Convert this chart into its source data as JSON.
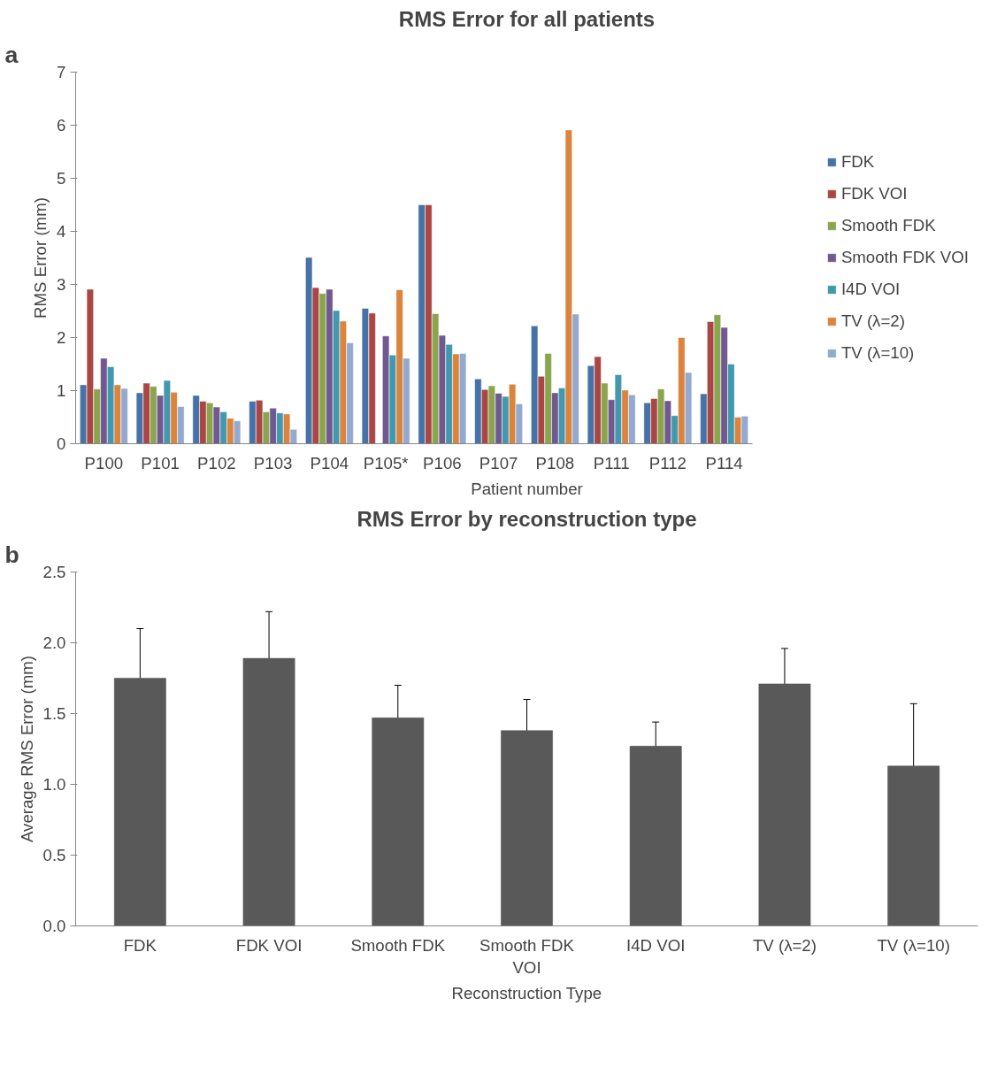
{
  "chart_data": [
    {
      "type": "bar",
      "title": "RMS Error for all patients",
      "xlabel": "Patient number",
      "ylabel": "RMS Error (mm)",
      "annotations": [
        "a"
      ],
      "categories": [
        "P100",
        "P101",
        "P102",
        "P103",
        "P104",
        "P105*",
        "P106",
        "P107",
        "P108",
        "P111",
        "P112",
        "P114"
      ],
      "ylim": [
        0,
        7
      ],
      "yticks": [
        0,
        1,
        2,
        3,
        4,
        5,
        6,
        7
      ],
      "grid": false,
      "legend": "right",
      "series": [
        {
          "name": "FDK",
          "color": "#4572a7",
          "values": [
            1.11,
            0.96,
            0.91,
            0.8,
            3.51,
            2.55,
            4.5,
            1.22,
            2.22,
            1.47,
            0.77,
            0.94
          ]
        },
        {
          "name": "FDK VOI",
          "color": "#aa4643",
          "values": [
            2.91,
            1.14,
            0.8,
            0.82,
            2.94,
            2.46,
            4.5,
            1.02,
            1.27,
            1.64,
            0.85,
            2.3
          ]
        },
        {
          "name": "Smooth FDK",
          "color": "#89a54e",
          "values": [
            1.03,
            1.08,
            0.77,
            0.6,
            2.83,
            null,
            2.45,
            1.09,
            1.7,
            1.14,
            1.03,
            2.43
          ]
        },
        {
          "name": "Smooth FDK VOI",
          "color": "#71588f",
          "values": [
            1.61,
            0.91,
            0.69,
            0.67,
            2.91,
            2.03,
            2.04,
            0.95,
            0.96,
            0.83,
            0.81,
            2.19
          ]
        },
        {
          "name": "I4D VOI",
          "color": "#4198af",
          "values": [
            1.45,
            1.19,
            0.6,
            0.58,
            2.51,
            1.67,
            1.87,
            0.89,
            1.05,
            1.3,
            0.53,
            1.5
          ]
        },
        {
          "name": "TV (λ=2)",
          "color": "#db843d",
          "values": [
            1.11,
            0.97,
            0.48,
            0.56,
            2.31,
            2.9,
            1.69,
            1.12,
            5.91,
            1.01,
            2.0,
            0.5
          ]
        },
        {
          "name": "TV (λ=10)",
          "color": "#93a9cf",
          "values": [
            1.04,
            0.7,
            0.43,
            0.27,
            1.9,
            1.61,
            1.7,
            0.75,
            2.44,
            0.92,
            1.34,
            0.52
          ]
        }
      ]
    },
    {
      "type": "bar",
      "title": "RMS Error by reconstruction type",
      "xlabel": "Reconstruction Type",
      "ylabel": "Average RMS Error (mm)",
      "annotations": [
        "b"
      ],
      "categories": [
        "FDK",
        "FDK VOI",
        "Smooth FDK",
        "Smooth FDK\nVOI",
        "I4D VOI",
        "TV (λ=2)",
        "TV (λ=10)"
      ],
      "ylim": [
        0,
        2.5
      ],
      "yticks": [
        {
          "value": 0,
          "label": "0.0"
        },
        {
          "value": 0.5,
          "label": "0.5"
        },
        {
          "value": 1,
          "label": "1.0"
        },
        {
          "value": 1.5,
          "label": "1.5"
        },
        {
          "value": 2,
          "label": "2.0"
        },
        {
          "value": 2.5,
          "label": "2.5"
        }
      ],
      "grid": false,
      "color": "#595959",
      "values": [
        1.75,
        1.89,
        1.47,
        1.38,
        1.27,
        1.71,
        1.13
      ],
      "errors": [
        0.35,
        0.33,
        0.23,
        0.22,
        0.17,
        0.25,
        0.44
      ]
    }
  ]
}
